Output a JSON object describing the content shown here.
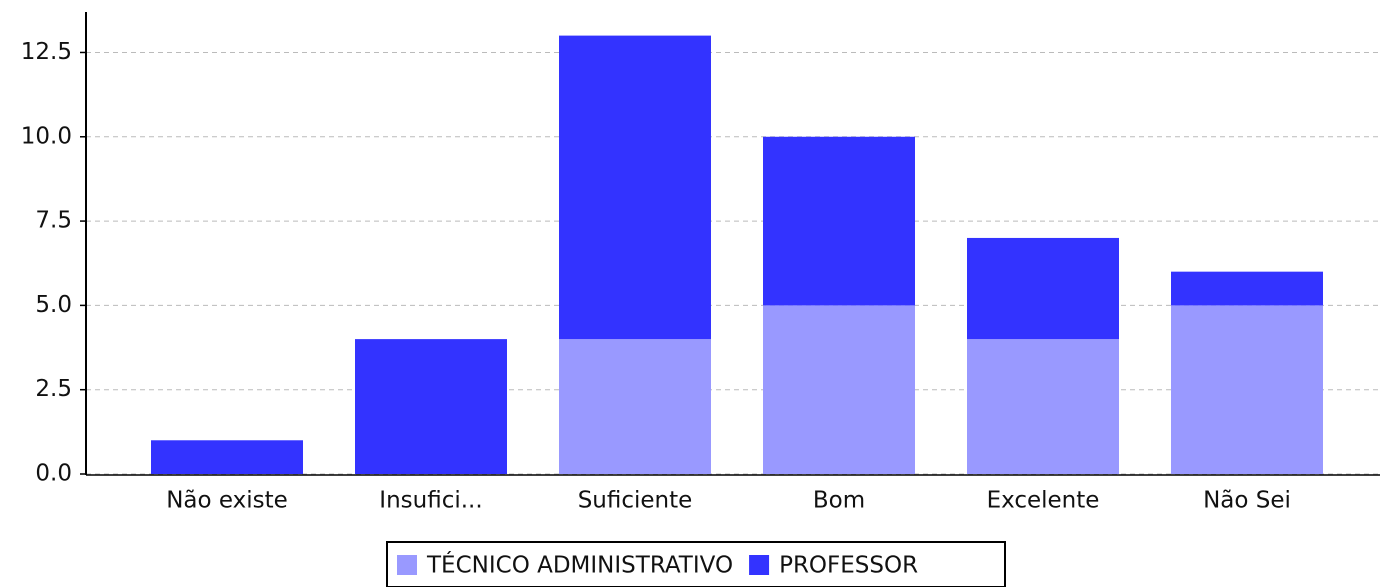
{
  "chart_data": {
    "type": "stacked_bar",
    "categories": [
      "Não existe",
      "Insufici...",
      "Suficiente",
      "Bom",
      "Excelente",
      "Não Sei"
    ],
    "series": [
      {
        "name": "TÉCNICO ADMINISTRATIVO",
        "color": "#9999ff",
        "values": [
          0,
          0,
          4,
          5,
          4,
          5
        ]
      },
      {
        "name": "PROFESSOR",
        "color": "#3333ff",
        "values": [
          1,
          4,
          9,
          5,
          3,
          1
        ]
      }
    ],
    "ylim": [
      0,
      13.7
    ],
    "yticks": [
      {
        "value": 0,
        "label": "0.0"
      },
      2.5,
      {
        "value": 5,
        "label": "5.0"
      },
      7.5,
      {
        "value": 10,
        "label": "10.0"
      },
      12.5
    ],
    "grid": true,
    "legend": "bottom"
  }
}
